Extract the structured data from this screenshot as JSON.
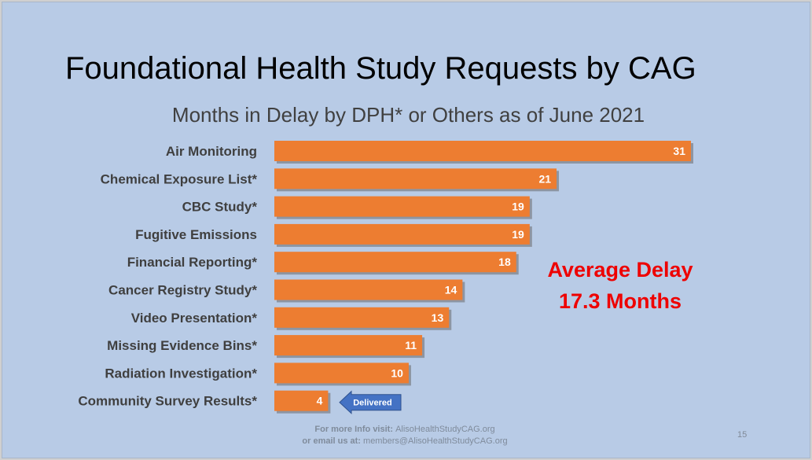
{
  "slide": {
    "title": "Foundational Health Study Requests by CAG",
    "subtitle": "Months in Delay by DPH* or Others as of June 2021",
    "average_line1": "Average Delay",
    "average_line2": "17.3 Months",
    "callout_label": "Delivered",
    "footer_line1_prefix": "For more Info visit: ",
    "footer_line1_link": "AlisoHealthStudyCAG.org",
    "footer_line2_prefix": "or email us at: ",
    "footer_line2_link": "members@AlisoHealthStudyCAG.org",
    "page_number": "15"
  },
  "colors": {
    "background": "#b8cbe6",
    "bar": "#ed7d31",
    "average_text": "#ee0000",
    "callout": "#4472c4"
  },
  "chart_data": {
    "type": "bar",
    "orientation": "horizontal",
    "categories": [
      "Air Monitoring",
      "Chemical Exposure List*",
      "CBC Study*",
      "Fugitive Emissions",
      "Financial Reporting*",
      "Cancer Registry Study*",
      "Video Presentation*",
      "Missing Evidence Bins*",
      "Radiation Investigation*",
      "Community Survey Results*"
    ],
    "values": [
      31,
      21,
      19,
      19,
      18,
      14,
      13,
      11,
      10,
      4
    ],
    "data_labels": true,
    "xlim": [
      0,
      31
    ],
    "grid": false,
    "legend": "none",
    "annotations": [
      "Average Delay 17.3 Months",
      "Delivered"
    ]
  }
}
